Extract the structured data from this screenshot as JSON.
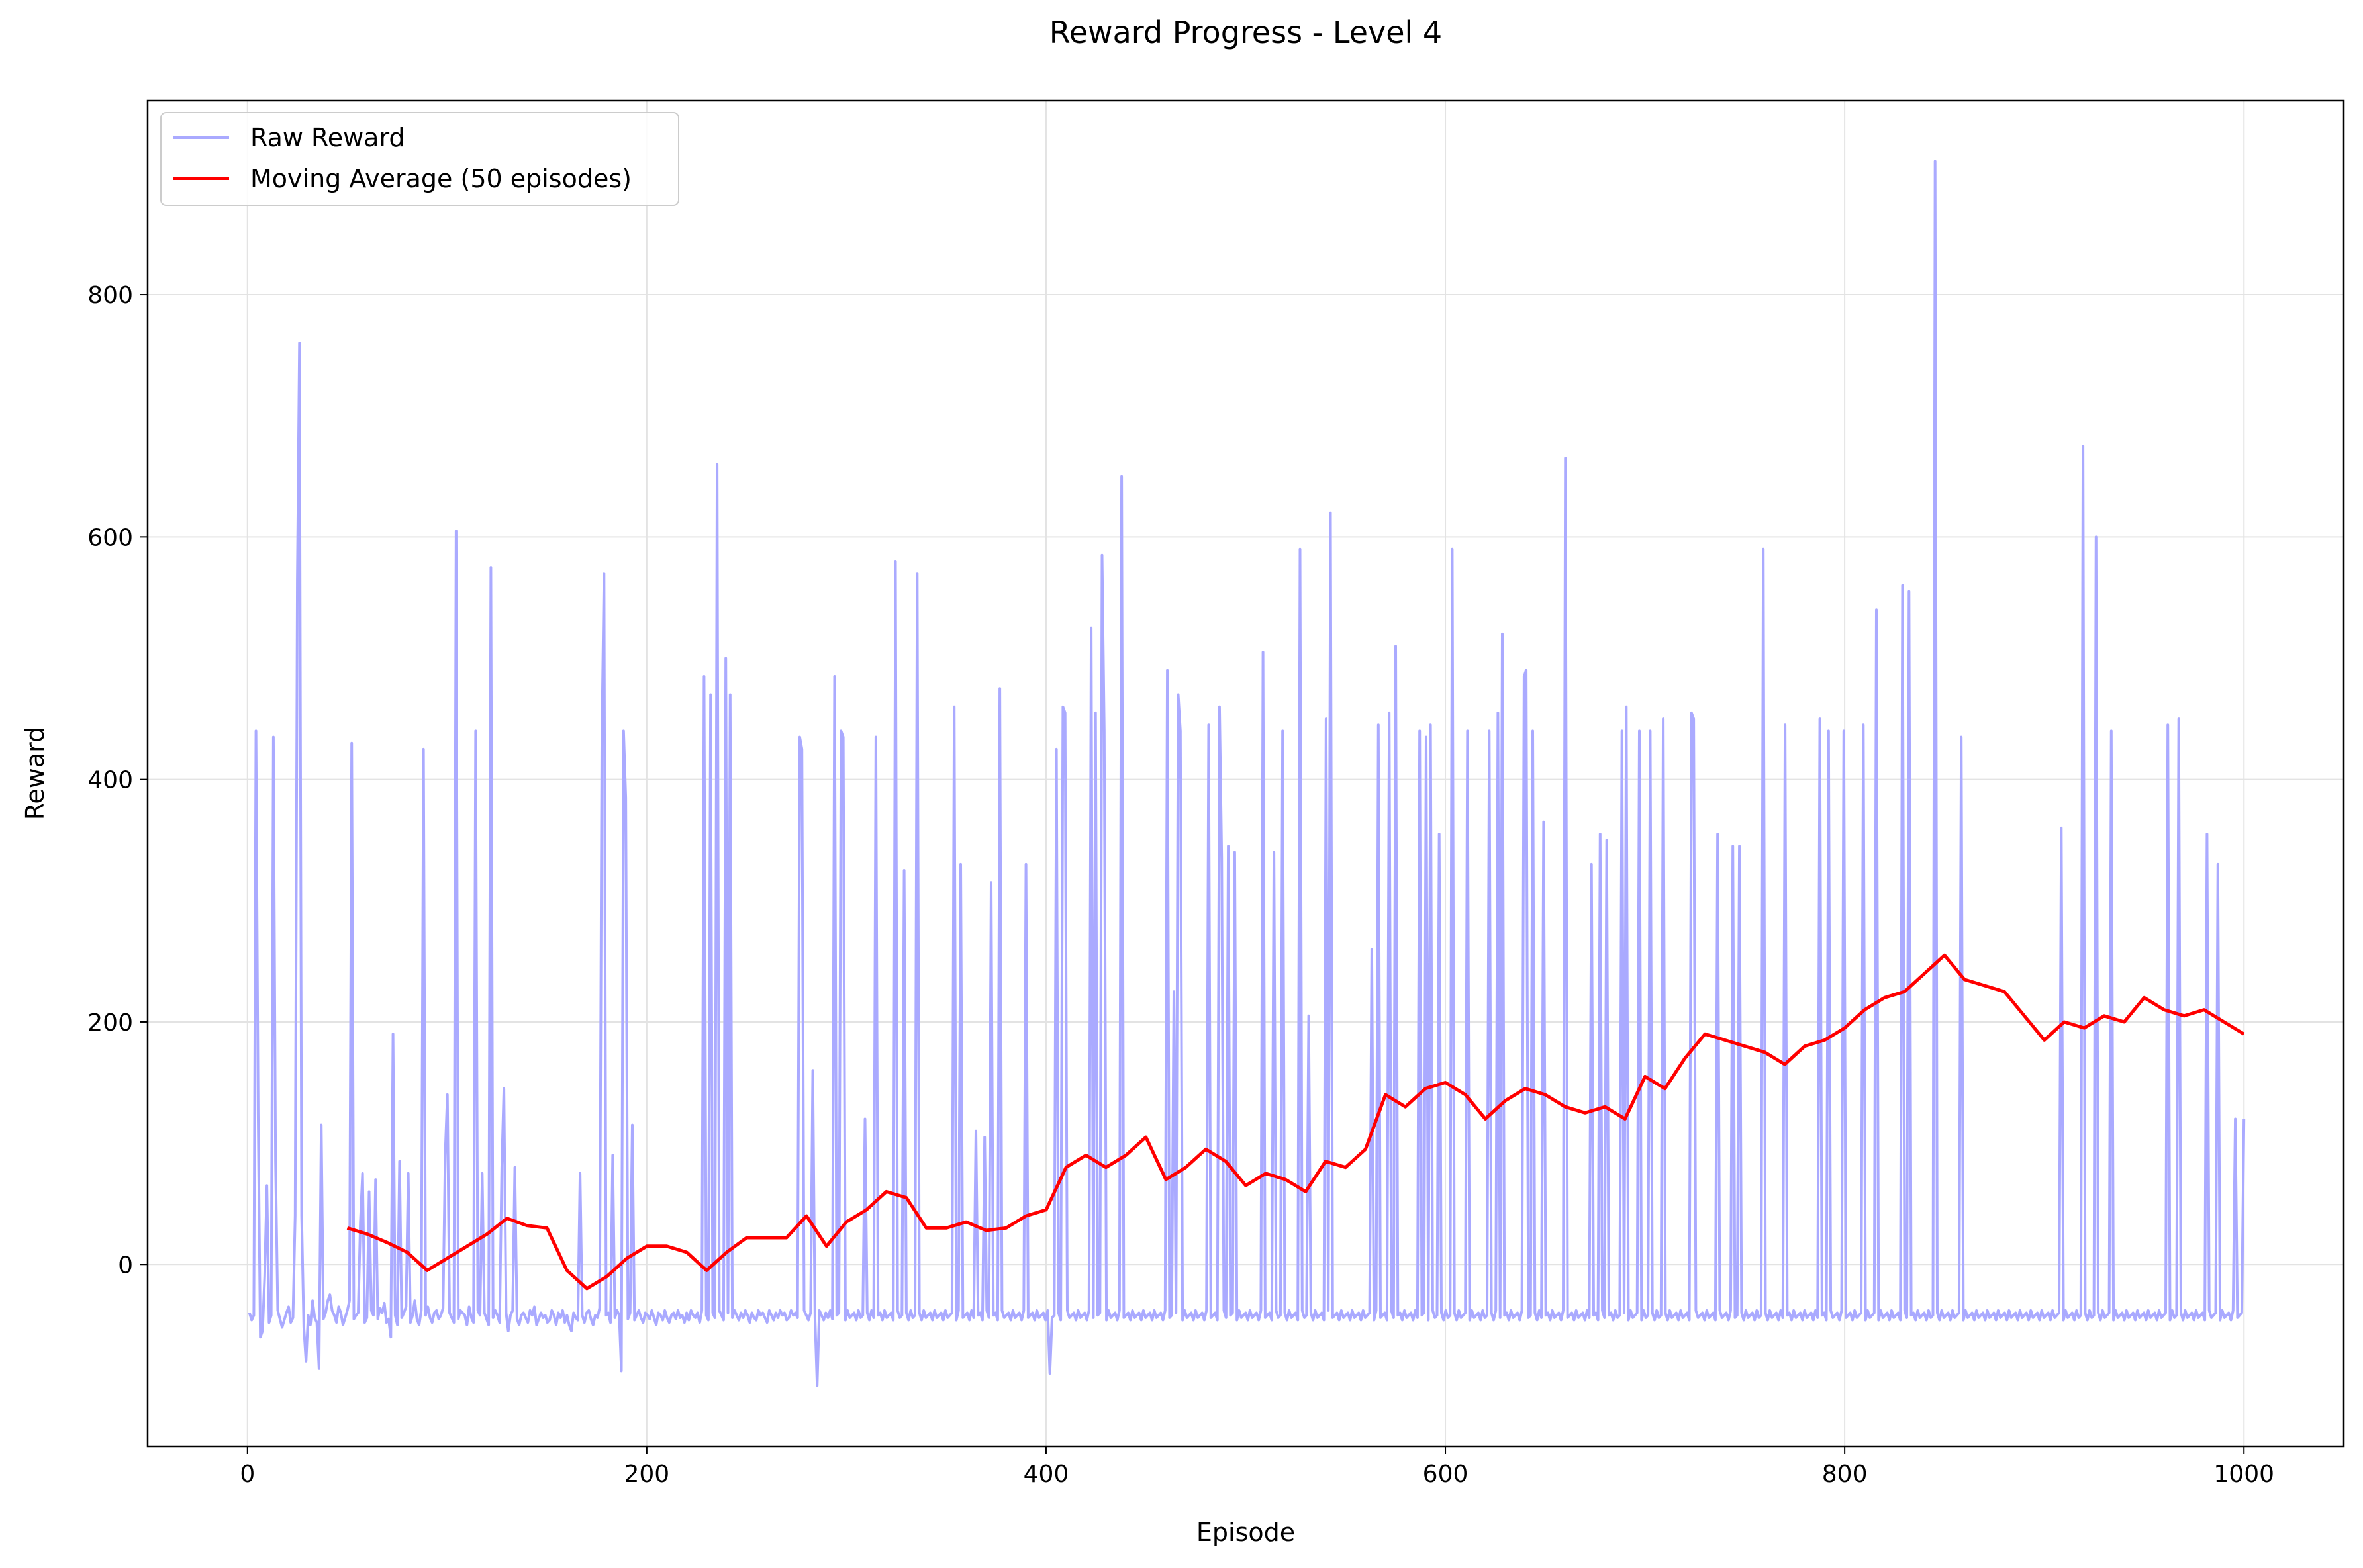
{
  "chart_data": {
    "type": "line",
    "title": "Reward Progress - Level 4",
    "xlabel": "Episode",
    "ylabel": "Reward",
    "xlim": [
      -50,
      1050
    ],
    "ylim": [
      -150,
      960
    ],
    "xticks": [
      "0",
      "200",
      "400",
      "600",
      "800",
      "1000"
    ],
    "yticks": [
      "0",
      "200",
      "400",
      "600",
      "800"
    ],
    "grid": true,
    "legend_position": "top-left",
    "series": [
      {
        "name": "Raw Reward",
        "color": "#aaaaff",
        "x_start": 1,
        "x_end": 1000,
        "values": [
          -40,
          -46,
          -42,
          440,
          125,
          -60,
          -55,
          -10,
          65,
          -48,
          -42,
          435,
          85,
          -38,
          -45,
          -52,
          -46,
          -40,
          -35,
          -48,
          -44,
          40,
          565,
          760,
          40,
          -52,
          -80,
          -42,
          -50,
          -30,
          -44,
          -48,
          -86,
          115,
          -45,
          -40,
          -30,
          -25,
          -38,
          -42,
          -48,
          -35,
          -40,
          -50,
          -44,
          -38,
          -30,
          430,
          -45,
          -42,
          -40,
          35,
          75,
          -48,
          -44,
          60,
          -38,
          -42,
          70,
          -45,
          -36,
          -40,
          -32,
          -48,
          -45,
          -60,
          190,
          -42,
          -50,
          85,
          -44,
          -40,
          -35,
          75,
          -48,
          -42,
          -30,
          -45,
          -50,
          -38,
          425,
          -42,
          -35,
          -44,
          -48,
          -40,
          -38,
          -45,
          -42,
          -36,
          90,
          140,
          -40,
          -44,
          -48,
          605,
          -45,
          -38,
          -40,
          -42,
          -50,
          -35,
          -44,
          -48,
          440,
          -38,
          -42,
          75,
          -40,
          -45,
          -50,
          575,
          -44,
          -38,
          -42,
          -48,
          80,
          145,
          -40,
          -55,
          -42,
          -38,
          80,
          -45,
          -50,
          -42,
          -40,
          -44,
          -48,
          -38,
          -42,
          -35,
          -50,
          -45,
          -40,
          -44,
          -42,
          -48,
          -46,
          -38,
          -42,
          -50,
          -40,
          -44,
          -38,
          -48,
          -42,
          -50,
          -55,
          -40,
          -44,
          -46,
          75,
          -42,
          -48,
          -40,
          -38,
          -45,
          -50,
          -42,
          -44,
          -36,
          430,
          570,
          -42,
          -40,
          -48,
          90,
          -44,
          -38,
          -42,
          -88,
          440,
          385,
          -45,
          -40,
          115,
          -46,
          -42,
          -38,
          -44,
          -48,
          -40,
          -42,
          -45,
          -38,
          -44,
          -50,
          -40,
          -42,
          -46,
          -38,
          -44,
          -48,
          -42,
          -40,
          -45,
          -38,
          -44,
          -42,
          -48,
          -40,
          -46,
          -38,
          -42,
          -44,
          -40,
          -48,
          -38,
          485,
          -42,
          -46,
          470,
          -40,
          -44,
          660,
          -38,
          -42,
          -46,
          500,
          -40,
          470,
          -44,
          -38,
          -42,
          -46,
          -40,
          -44,
          -38,
          -42,
          -48,
          -40,
          -44,
          -46,
          -38,
          -42,
          -40,
          -44,
          -48,
          -38,
          -42,
          -46,
          -40,
          -44,
          -38,
          -42,
          -40,
          -46,
          -44,
          -38,
          -42,
          -40,
          -44,
          435,
          425,
          -38,
          -42,
          -46,
          -40,
          160,
          -44,
          -100,
          -38,
          -42,
          -46,
          -40,
          -44,
          -38,
          -45,
          485,
          -42,
          -40,
          440,
          435,
          -46,
          -38,
          -44,
          -42,
          -40,
          -46,
          -38,
          -44,
          -42,
          120,
          -40,
          -46,
          -38,
          -44,
          435,
          -42,
          -40,
          -46,
          -38,
          -44,
          -42,
          -40,
          -46,
          580,
          -38,
          -44,
          -42,
          325,
          -40,
          -46,
          -38,
          -44,
          -42,
          570,
          -40,
          -46,
          -38,
          -44,
          -42,
          -40,
          -46,
          -38,
          -44,
          -42,
          -40,
          -46,
          -38,
          -44,
          -42,
          -40,
          460,
          -46,
          -38,
          330,
          -44,
          -42,
          -40,
          -46,
          -38,
          -44,
          110,
          -42,
          -40,
          -46,
          105,
          -38,
          -44,
          315,
          -42,
          -40,
          -46,
          475,
          -38,
          -44,
          -42,
          -40,
          -46,
          -38,
          -44,
          -42,
          -40,
          -46,
          -38,
          330,
          -44,
          -42,
          -40,
          -46,
          -38,
          -44,
          -42,
          -40,
          -46,
          -38,
          -90,
          -44,
          -42,
          425,
          -40,
          -46,
          460,
          455,
          -38,
          -44,
          -42,
          -40,
          -46,
          -38,
          -44,
          -42,
          -40,
          -46,
          -38,
          525,
          -44,
          455,
          -42,
          -40,
          585,
          440,
          -46,
          -38,
          -44,
          -42,
          -40,
          -46,
          -38,
          650,
          -44,
          -42,
          -40,
          -46,
          -38,
          -44,
          -42,
          -40,
          -46,
          -38,
          -44,
          -42,
          -40,
          -46,
          -38,
          -44,
          -42,
          -40,
          -46,
          -38,
          490,
          -44,
          -42,
          225,
          -40,
          470,
          440,
          -46,
          -38,
          -44,
          -42,
          -40,
          -46,
          -38,
          -44,
          -42,
          -40,
          -46,
          -38,
          445,
          -44,
          -42,
          -40,
          -46,
          460,
          335,
          -38,
          -44,
          345,
          -42,
          -40,
          340,
          -46,
          -38,
          -44,
          -42,
          -40,
          -46,
          -38,
          -44,
          -42,
          -40,
          -46,
          -38,
          505,
          -44,
          -42,
          -40,
          -46,
          340,
          -38,
          -44,
          -42,
          440,
          -40,
          -46,
          -38,
          -44,
          -42,
          -40,
          -46,
          590,
          -38,
          -44,
          -42,
          205,
          -40,
          -46,
          -38,
          -44,
          -42,
          -40,
          -46,
          450,
          -38,
          620,
          -44,
          -42,
          -40,
          -46,
          -38,
          -44,
          -42,
          -40,
          -46,
          -38,
          -44,
          -42,
          -40,
          -46,
          -38,
          -44,
          -42,
          -40,
          260,
          -46,
          -38,
          445,
          -44,
          -42,
          -40,
          -46,
          455,
          -38,
          -44,
          510,
          -42,
          -40,
          -46,
          -38,
          -44,
          -42,
          -40,
          -46,
          -38,
          -44,
          440,
          -42,
          -40,
          435,
          -46,
          445,
          -38,
          -44,
          -42,
          355,
          -40,
          -46,
          -38,
          -44,
          -42,
          590,
          -40,
          -46,
          -38,
          -44,
          -42,
          -40,
          440,
          -46,
          -38,
          -44,
          -42,
          -40,
          -46,
          -38,
          -44,
          -42,
          440,
          -40,
          -46,
          -38,
          455,
          -44,
          520,
          -42,
          -40,
          -46,
          -38,
          -44,
          -42,
          -40,
          -46,
          -38,
          485,
          490,
          -44,
          -42,
          440,
          -40,
          -46,
          -38,
          -44,
          365,
          -42,
          -40,
          -46,
          -38,
          -44,
          -42,
          -40,
          -46,
          -38,
          665,
          -44,
          -42,
          -40,
          -46,
          -38,
          -44,
          -42,
          -40,
          -46,
          -38,
          -44,
          330,
          -42,
          -40,
          -46,
          355,
          -38,
          -44,
          350,
          -42,
          -40,
          -46,
          -38,
          -44,
          -42,
          440,
          -40,
          460,
          -46,
          -38,
          -44,
          -42,
          -40,
          440,
          -46,
          -38,
          -44,
          -42,
          440,
          -40,
          -46,
          -38,
          -44,
          -42,
          450,
          -40,
          -46,
          -38,
          -44,
          -42,
          -40,
          -46,
          -38,
          -44,
          -42,
          -40,
          -46,
          455,
          450,
          -38,
          -44,
          -42,
          -40,
          -46,
          -38,
          -44,
          -42,
          -40,
          -46,
          355,
          -38,
          -44,
          -42,
          -40,
          -46,
          -38,
          345,
          -44,
          -42,
          345,
          -40,
          -46,
          -38,
          -44,
          -42,
          -40,
          -46,
          -38,
          -44,
          -42,
          590,
          -40,
          -46,
          -38,
          -44,
          -42,
          -40,
          -46,
          -38,
          -44,
          445,
          -42,
          -40,
          -46,
          -38,
          -44,
          -42,
          -40,
          -46,
          -38,
          -44,
          -42,
          -40,
          -46,
          -38,
          -44,
          450,
          -42,
          -40,
          -46,
          440,
          -38,
          -44,
          -42,
          -40,
          -46,
          -38,
          440,
          -44,
          -42,
          -40,
          -46,
          -38,
          -44,
          -42,
          -40,
          445,
          -46,
          -38,
          -44,
          -42,
          -40,
          540,
          -46,
          -38,
          -44,
          -42,
          -40,
          -46,
          -38,
          -44,
          -42,
          -40,
          -46,
          560,
          -38,
          -44,
          555,
          -42,
          -40,
          -46,
          -38,
          -44,
          -42,
          -40,
          -46,
          -38,
          -44,
          -42,
          910,
          -40,
          -46,
          -38,
          -44,
          -42,
          -40,
          -46,
          -38,
          -44,
          -42,
          -40,
          435,
          -46,
          -38,
          -44,
          -42,
          -40,
          -46,
          -38,
          -44,
          -42,
          -40,
          -46,
          -38,
          -44,
          -42,
          -40,
          -46,
          -38,
          -44,
          -42,
          -40,
          -46,
          -38,
          -44,
          -42,
          -40,
          -46,
          -38,
          -44,
          -42,
          -40,
          -46,
          -38,
          -44,
          -42,
          -40,
          -46,
          -38,
          -44,
          -42,
          -40,
          -46,
          -38,
          -44,
          -42,
          -40,
          360,
          -46,
          -38,
          -44,
          -42,
          -40,
          -46,
          -38,
          -44,
          -42,
          675,
          -40,
          -46,
          -38,
          -44,
          -42,
          600,
          -40,
          -46,
          -38,
          -44,
          -42,
          -40,
          440,
          -46,
          -38,
          -44,
          -42,
          -40,
          -46,
          -38,
          -44,
          -42,
          -40,
          -46,
          -38,
          -44,
          -42,
          -40,
          -46,
          -38,
          -44,
          -42,
          -40,
          -46,
          -38,
          -44,
          -42,
          -40,
          445,
          -46,
          -38,
          -44,
          -42,
          450,
          -40,
          -46,
          -38,
          -44,
          -42,
          -40,
          -46,
          -38,
          -44,
          -42,
          -40,
          -46,
          355,
          -38,
          -44,
          -42,
          -40,
          330,
          -46,
          -38,
          -44,
          -42,
          -40,
          -46,
          -38,
          120,
          -44,
          -42,
          -40,
          120
        ]
      },
      {
        "name": "Moving Average (50 episodes)",
        "color": "#ff0000",
        "x": [
          50,
          60,
          70,
          80,
          90,
          100,
          110,
          120,
          130,
          140,
          150,
          160,
          170,
          180,
          190,
          200,
          210,
          220,
          230,
          240,
          250,
          260,
          270,
          280,
          290,
          300,
          310,
          320,
          330,
          340,
          350,
          360,
          370,
          380,
          390,
          400,
          410,
          420,
          430,
          440,
          450,
          460,
          470,
          480,
          490,
          500,
          510,
          520,
          530,
          540,
          550,
          560,
          570,
          580,
          590,
          600,
          610,
          620,
          630,
          640,
          650,
          660,
          670,
          680,
          690,
          700,
          710,
          720,
          730,
          740,
          750,
          760,
          770,
          780,
          790,
          800,
          810,
          820,
          830,
          840,
          850,
          860,
          870,
          880,
          890,
          900,
          910,
          920,
          930,
          940,
          950,
          960,
          970,
          980,
          990,
          1000
        ],
        "values": [
          30,
          25,
          18,
          10,
          -5,
          5,
          15,
          25,
          38,
          32,
          30,
          -5,
          -20,
          -10,
          5,
          15,
          15,
          10,
          -5,
          10,
          22,
          22,
          22,
          40,
          15,
          35,
          45,
          60,
          55,
          30,
          30,
          35,
          28,
          30,
          40,
          45,
          80,
          90,
          80,
          90,
          105,
          70,
          80,
          95,
          85,
          65,
          75,
          70,
          60,
          85,
          80,
          95,
          140,
          130,
          145,
          150,
          140,
          120,
          135,
          145,
          140,
          130,
          125,
          130,
          120,
          155,
          145,
          170,
          190,
          185,
          180,
          175,
          165,
          180,
          185,
          195,
          210,
          220,
          225,
          240,
          255,
          235,
          230,
          225,
          205,
          185,
          200,
          195,
          205,
          200,
          220,
          210,
          205,
          210,
          200,
          190
        ]
      }
    ]
  }
}
